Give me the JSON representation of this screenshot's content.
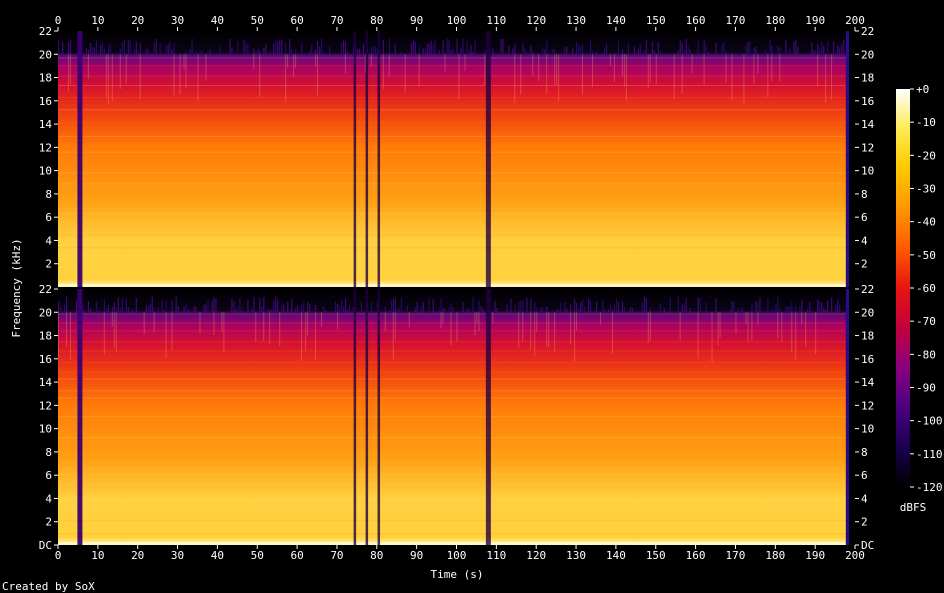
{
  "chart_data": {
    "type": "heatmap",
    "subtype": "spectrogram",
    "channels": 2,
    "xlabel": "Time (s)",
    "ylabel": "Frequency (kHz)",
    "xlim": [
      0,
      200
    ],
    "ylim": [
      0,
      22
    ],
    "x_ticks": [
      0,
      10,
      20,
      30,
      40,
      50,
      60,
      70,
      80,
      90,
      100,
      110,
      120,
      130,
      140,
      150,
      160,
      170,
      180,
      190,
      200
    ],
    "y_ticks_top": [
      "2",
      "4",
      "6",
      "8",
      "10",
      "12",
      "14",
      "16",
      "18",
      "20",
      "22"
    ],
    "y_ticks_bottom": [
      "DC",
      "2",
      "4",
      "6",
      "8",
      "10",
      "12",
      "14",
      "16",
      "18",
      "20",
      "22"
    ],
    "colorbar": {
      "label": "dBFS",
      "range": [
        -120,
        0
      ],
      "ticks": [
        "+0",
        "-10",
        "-20",
        "-30",
        "-40",
        "-50",
        "-60",
        "-70",
        "-80",
        "-90",
        "-100",
        "-110",
        "-120"
      ],
      "colors": [
        "#000000",
        "#1a0050",
        "#4a0080",
        "#8a0080",
        "#c2003c",
        "#e81410",
        "#ff5a00",
        "#ff9600",
        "#ffc800",
        "#ffeb50",
        "#ffffff"
      ]
    },
    "content_cutoff_khz": 20,
    "dark_bands_s": [
      5.5,
      74.5,
      77.5,
      80.5,
      108,
      198
    ],
    "silence_after_s": 198.5
  },
  "footer": {
    "credit": "Created by SoX"
  }
}
